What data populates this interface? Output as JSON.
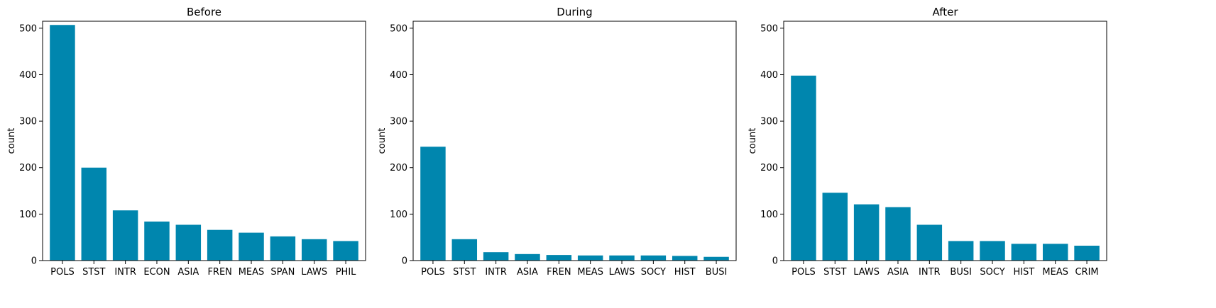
{
  "colors": {
    "bar": "#0086AE",
    "axis": "#000000",
    "background": "#ffffff"
  },
  "chart_data": [
    {
      "type": "bar",
      "title": "Before",
      "xlabel": "",
      "ylabel": "count",
      "ylim": [
        0,
        515
      ],
      "yticks": [
        0,
        100,
        200,
        300,
        400,
        500
      ],
      "categories": [
        "POLS",
        "STST",
        "INTR",
        "ECON",
        "ASIA",
        "FREN",
        "MEAS",
        "SPAN",
        "LAWS",
        "PHIL"
      ],
      "values": [
        507,
        200,
        108,
        84,
        77,
        66,
        60,
        52,
        46,
        42
      ]
    },
    {
      "type": "bar",
      "title": "During",
      "xlabel": "",
      "ylabel": "count",
      "ylim": [
        0,
        515
      ],
      "yticks": [
        0,
        100,
        200,
        300,
        400,
        500
      ],
      "categories": [
        "POLS",
        "STST",
        "INTR",
        "ASIA",
        "FREN",
        "MEAS",
        "LAWS",
        "SOCY",
        "HIST",
        "BUSI"
      ],
      "values": [
        245,
        46,
        18,
        14,
        12,
        11,
        11,
        11,
        10,
        8
      ]
    },
    {
      "type": "bar",
      "title": "After",
      "xlabel": "",
      "ylabel": "count",
      "ylim": [
        0,
        515
      ],
      "yticks": [
        0,
        100,
        200,
        300,
        400,
        500
      ],
      "categories": [
        "POLS",
        "STST",
        "LAWS",
        "ASIA",
        "INTR",
        "BUSI",
        "SOCY",
        "HIST",
        "MEAS",
        "CRIM"
      ],
      "values": [
        398,
        146,
        121,
        115,
        77,
        42,
        42,
        36,
        36,
        32
      ]
    }
  ]
}
